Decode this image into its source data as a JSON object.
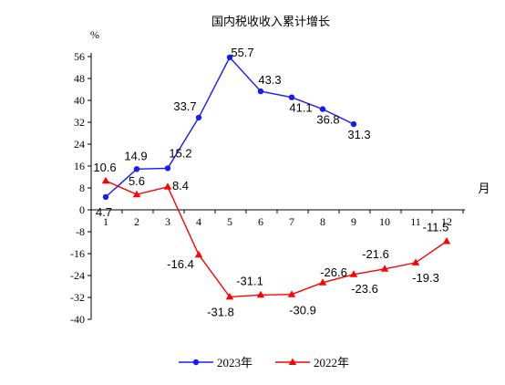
{
  "chart_data": {
    "type": "line",
    "title": "国内税收收入累计增长",
    "ylabel": "%",
    "xlabel": "月",
    "ylim": [
      -40,
      56
    ],
    "yticks": [
      56,
      48,
      40,
      32,
      24,
      16,
      8,
      0,
      -8,
      -16,
      -24,
      -32,
      -40
    ],
    "categories": [
      "1",
      "2",
      "3",
      "4",
      "5",
      "6",
      "7",
      "8",
      "9",
      "10",
      "11",
      "12"
    ],
    "legend_position": "bottom",
    "grid": false,
    "series": [
      {
        "name": "2023年",
        "color": "#1a1aff",
        "marker": "circle",
        "x": [
          1,
          2,
          3,
          4,
          5,
          6,
          7,
          8,
          9
        ],
        "values": [
          4.7,
          14.9,
          15.2,
          33.7,
          55.7,
          43.3,
          41.1,
          36.8,
          31.3
        ],
        "labels": [
          "4.7",
          "14.9",
          "15.2",
          "33.7",
          "55.7",
          "43.3",
          "41.1",
          "36.8",
          "31.3"
        ]
      },
      {
        "name": "2022年",
        "color": "#ff0000",
        "marker": "triangle",
        "x": [
          1,
          2,
          3,
          4,
          5,
          6,
          7,
          8,
          9,
          10,
          11,
          12
        ],
        "values": [
          10.6,
          5.6,
          8.4,
          -16.4,
          -31.8,
          -31.1,
          -30.9,
          -26.6,
          -23.6,
          -21.6,
          -19.3,
          -11.5
        ],
        "labels": [
          "10.6",
          "5.6",
          "8.4",
          "-16.4",
          "-31.8",
          "-31.1",
          "-30.9",
          "-26.6",
          "-23.6",
          "-21.6",
          "-19.3",
          "-11.5"
        ]
      }
    ]
  }
}
